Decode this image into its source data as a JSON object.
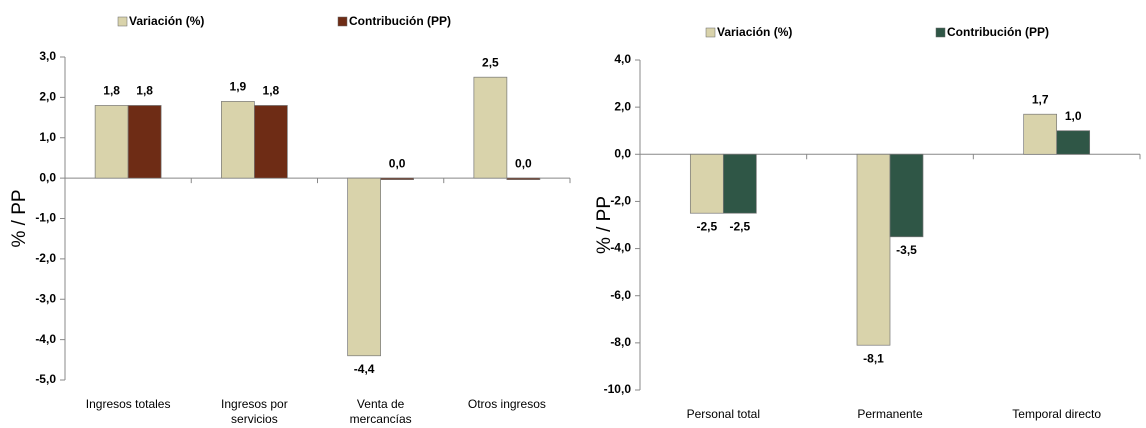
{
  "chart_data": [
    {
      "type": "bar",
      "y_label": "% / PP",
      "categories": [
        "Ingresos totales",
        "Ingresos por servicios",
        "Venta de mercancías",
        "Otros ingresos"
      ],
      "series": [
        {
          "name": "Variación (%)",
          "color": "#d9d3ab",
          "values": [
            1.8,
            1.9,
            -4.4,
            2.5
          ],
          "value_labels": [
            "1,8",
            "1,9",
            "-4,4",
            "2,5"
          ]
        },
        {
          "name": "Contribución (PP)",
          "color": "#6e2c15",
          "values": [
            1.8,
            1.8,
            0.0,
            0.0
          ],
          "value_labels": [
            "1,8",
            "1,8",
            "0,0",
            "0,0"
          ]
        }
      ],
      "ylim": [
        -5,
        3
      ],
      "yticks": [
        {
          "value": -5,
          "label": "-5,0"
        },
        {
          "value": -4,
          "label": "-4,0"
        },
        {
          "value": -3,
          "label": "-3,0"
        },
        {
          "value": -2,
          "label": "-2,0"
        },
        {
          "value": -1,
          "label": "-1,0"
        },
        {
          "value": 0,
          "label": "0,0"
        },
        {
          "value": 1,
          "label": "1,0"
        },
        {
          "value": 2,
          "label": "2,0"
        },
        {
          "value": 3,
          "label": "3,0"
        }
      ]
    },
    {
      "type": "bar",
      "y_label": "% / PP",
      "categories": [
        "Personal total",
        "Permanente",
        "Temporal directo"
      ],
      "series": [
        {
          "name": "Variación (%)",
          "color": "#d9d3ab",
          "values": [
            -2.5,
            -8.1,
            1.7
          ],
          "value_labels": [
            "-2,5",
            "-8,1",
            "1,7"
          ]
        },
        {
          "name": "Contribución (PP)",
          "color": "#2f5646",
          "values": [
            -2.5,
            -3.5,
            1.0
          ],
          "value_labels": [
            "-2,5",
            "-3,5",
            "1,0"
          ]
        }
      ],
      "ylim": [
        -10,
        4
      ],
      "yticks": [
        {
          "value": -10,
          "label": "-10,0"
        },
        {
          "value": -8,
          "label": "-8,0"
        },
        {
          "value": -6,
          "label": "-6,0"
        },
        {
          "value": -4,
          "label": "-4,0"
        },
        {
          "value": -2,
          "label": "-2,0"
        },
        {
          "value": 0,
          "label": "0,0"
        },
        {
          "value": 2,
          "label": "2,0"
        },
        {
          "value": 4,
          "label": "4,0"
        }
      ]
    }
  ]
}
